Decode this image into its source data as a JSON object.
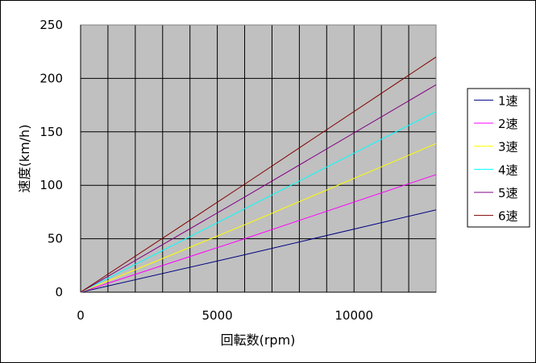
{
  "chart_data": {
    "type": "line",
    "title": "",
    "xlabel": "回転数(rpm)",
    "ylabel": "速度(km/h)",
    "xlim": [
      0,
      13000
    ],
    "ylim": [
      0,
      250
    ],
    "x_ticks": [
      "0",
      "5000",
      "10000"
    ],
    "y_ticks": [
      "0",
      "50",
      "100",
      "150",
      "200",
      "250"
    ],
    "grid": true,
    "legend_position": "right",
    "plot_background": "#c0c0c0",
    "series": [
      {
        "name": "1速",
        "color": "#000080",
        "x": [
          0,
          6000,
          13000
        ],
        "y": [
          0,
          35,
          77
        ]
      },
      {
        "name": "2速",
        "color": "#ff00ff",
        "x": [
          0,
          6000,
          13000
        ],
        "y": [
          0,
          50,
          110
        ]
      },
      {
        "name": "3速",
        "color": "#ffff00",
        "x": [
          0,
          6000,
          13000
        ],
        "y": [
          0,
          63,
          139
        ]
      },
      {
        "name": "4速",
        "color": "#00ffff",
        "x": [
          0,
          6000,
          13000
        ],
        "y": [
          0,
          78,
          169
        ]
      },
      {
        "name": "5速",
        "color": "#800080",
        "x": [
          0,
          6000,
          13000
        ],
        "y": [
          0,
          89,
          194
        ]
      },
      {
        "name": "6速",
        "color": "#800000",
        "x": [
          0,
          6000,
          13000
        ],
        "y": [
          0,
          101,
          220
        ]
      }
    ]
  }
}
